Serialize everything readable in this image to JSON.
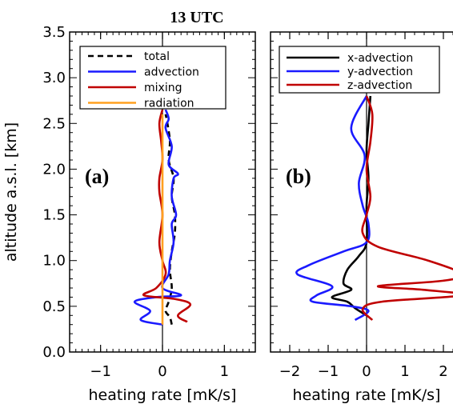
{
  "title": "13 UTC",
  "colors": {
    "total": "#000000",
    "advection": "#1a1aff",
    "mixing": "#c00000",
    "radiation": "#ffa020",
    "x": "#000000",
    "y": "#1a1aff",
    "z": "#c00000"
  },
  "chart_data": [
    {
      "type": "line",
      "panel_label": "(a)",
      "xlabel": "heating rate [mK/s]",
      "ylabel": "altitude a.s.l. [km]",
      "xlim": [
        -1.5,
        1.5
      ],
      "ylim": [
        0.0,
        3.5
      ],
      "xticks": [
        "-1",
        "0",
        "1"
      ],
      "yticks": [
        "0.0",
        "0.5",
        "1.0",
        "1.5",
        "2.0",
        "2.5",
        "3.0",
        "3.5"
      ],
      "legend_position": "top-left",
      "series": [
        {
          "name": "total",
          "color_key": "total",
          "dashed": true,
          "points": [
            [
              0.15,
              0.3
            ],
            [
              0.12,
              0.38
            ],
            [
              0.05,
              0.45
            ],
            [
              0.1,
              0.55
            ],
            [
              0.15,
              0.7
            ],
            [
              0.12,
              0.9
            ],
            [
              0.15,
              1.1
            ],
            [
              0.2,
              1.3
            ],
            [
              0.2,
              1.5
            ],
            [
              0.15,
              1.7
            ],
            [
              0.18,
              1.9
            ],
            [
              0.1,
              2.1
            ],
            [
              0.12,
              2.3
            ],
            [
              0.08,
              2.5
            ],
            [
              0.05,
              2.6
            ]
          ]
        },
        {
          "name": "advection",
          "color_key": "advection",
          "dashed": false,
          "points": [
            [
              0.0,
              0.3
            ],
            [
              -0.35,
              0.35
            ],
            [
              -0.2,
              0.45
            ],
            [
              -0.45,
              0.55
            ],
            [
              -0.1,
              0.6
            ],
            [
              0.3,
              0.62
            ],
            [
              0.0,
              0.7
            ],
            [
              0.1,
              0.85
            ],
            [
              0.12,
              1.0
            ],
            [
              0.18,
              1.2
            ],
            [
              0.15,
              1.4
            ],
            [
              0.22,
              1.5
            ],
            [
              0.15,
              1.7
            ],
            [
              0.18,
              1.9
            ],
            [
              0.25,
              1.95
            ],
            [
              0.1,
              2.05
            ],
            [
              0.15,
              2.25
            ],
            [
              0.05,
              2.45
            ],
            [
              0.1,
              2.55
            ],
            [
              0.05,
              2.65
            ]
          ]
        },
        {
          "name": "mixing",
          "color_key": "mixing",
          "dashed": false,
          "points": [
            [
              0.4,
              0.33
            ],
            [
              0.25,
              0.4
            ],
            [
              0.45,
              0.52
            ],
            [
              0.2,
              0.58
            ],
            [
              -0.3,
              0.62
            ],
            [
              -0.1,
              0.7
            ],
            [
              0.05,
              0.85
            ],
            [
              0.0,
              1.0
            ],
            [
              -0.05,
              1.2
            ],
            [
              0.0,
              1.5
            ],
            [
              -0.05,
              1.75
            ],
            [
              -0.05,
              1.9
            ],
            [
              0.0,
              2.1
            ],
            [
              -0.02,
              2.3
            ],
            [
              -0.05,
              2.5
            ],
            [
              0.0,
              2.65
            ]
          ]
        },
        {
          "name": "radiation",
          "color_key": "radiation",
          "dashed": false,
          "points": [
            [
              0.0,
              0.3
            ],
            [
              0.0,
              1.0
            ],
            [
              0.0,
              2.0
            ],
            [
              0.0,
              2.6
            ]
          ]
        }
      ]
    },
    {
      "type": "line",
      "panel_label": "(b)",
      "xlabel": "heating rate [mK/s]",
      "ylabel": "",
      "xlim": [
        -2.5,
        2.5
      ],
      "ylim": [
        0.0,
        3.5
      ],
      "xticks": [
        "-2",
        "-1",
        "0",
        "1",
        "2"
      ],
      "yticks": [],
      "legend_position": "top-left",
      "series": [
        {
          "name": "x-advection",
          "color_key": "x",
          "dashed": false,
          "points": [
            [
              0.1,
              2.8
            ],
            [
              0.05,
              2.5
            ],
            [
              0.0,
              2.2
            ],
            [
              0.05,
              1.9
            ],
            [
              0.0,
              1.6
            ],
            [
              0.0,
              1.2
            ],
            [
              -0.2,
              1.05
            ],
            [
              -0.5,
              0.9
            ],
            [
              -0.6,
              0.75
            ],
            [
              -0.4,
              0.68
            ],
            [
              -0.9,
              0.6
            ],
            [
              -0.5,
              0.55
            ],
            [
              -0.3,
              0.48
            ],
            [
              0.0,
              0.4
            ]
          ]
        },
        {
          "name": "y-advection",
          "color_key": "y",
          "dashed": false,
          "points": [
            [
              0.0,
              2.8
            ],
            [
              -0.4,
              2.45
            ],
            [
              -0.05,
              2.15
            ],
            [
              -0.2,
              1.85
            ],
            [
              -0.1,
              1.6
            ],
            [
              0.05,
              1.4
            ],
            [
              0.0,
              1.2
            ],
            [
              -0.6,
              1.1
            ],
            [
              -1.5,
              0.95
            ],
            [
              -1.8,
              0.85
            ],
            [
              -0.9,
              0.72
            ],
            [
              -1.3,
              0.62
            ],
            [
              -1.4,
              0.55
            ],
            [
              -0.4,
              0.5
            ],
            [
              0.05,
              0.45
            ],
            [
              -0.3,
              0.35
            ]
          ]
        },
        {
          "name": "z-advection",
          "color_key": "z",
          "dashed": false,
          "points": [
            [
              0.0,
              2.8
            ],
            [
              0.15,
              2.6
            ],
            [
              0.1,
              2.3
            ],
            [
              0.0,
              2.0
            ],
            [
              0.1,
              1.7
            ],
            [
              0.0,
              1.5
            ],
            [
              -0.1,
              1.3
            ],
            [
              0.3,
              1.15
            ],
            [
              1.6,
              1.0
            ],
            [
              2.5,
              0.85
            ],
            [
              2.0,
              0.78
            ],
            [
              0.3,
              0.72
            ],
            [
              1.5,
              0.68
            ],
            [
              2.5,
              0.62
            ],
            [
              0.4,
              0.55
            ],
            [
              -0.1,
              0.47
            ],
            [
              0.15,
              0.35
            ]
          ]
        }
      ]
    }
  ]
}
